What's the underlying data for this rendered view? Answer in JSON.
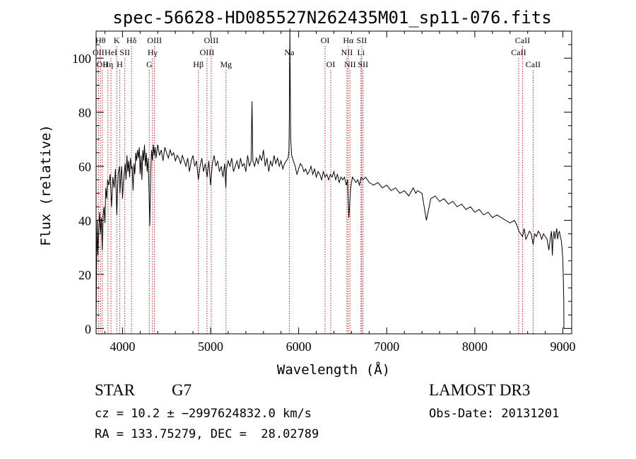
{
  "chart_data": {
    "type": "line",
    "title": "spec-56628-HD085527N262435M01_sp11-076.fits",
    "xlabel": "Wavelength (Å)",
    "ylabel": "Flux (relative)",
    "xlim": [
      3700,
      9100
    ],
    "ylim": [
      -2,
      110
    ],
    "xticks": [
      4000,
      5000,
      6000,
      7000,
      8000,
      9000
    ],
    "yticks": [
      0,
      20,
      40,
      60,
      80,
      100
    ],
    "grid": false,
    "colors": {
      "spectrum": "#000000",
      "lines": "#b22222"
    },
    "series": [
      {
        "x": [
          3700,
          3705,
          3712,
          3720,
          3730,
          3740,
          3750,
          3760,
          3770,
          3780,
          3790,
          3800,
          3810,
          3820,
          3830,
          3845,
          3860,
          3875,
          3890,
          3905,
          3920,
          3935,
          3950,
          3965,
          3970,
          3980,
          3990,
          4000,
          4010,
          4020,
          4030,
          4040,
          4050,
          4060,
          4070,
          4080,
          4090,
          4100,
          4110,
          4120,
          4130,
          4140,
          4150,
          4160,
          4170,
          4180,
          4190,
          4200,
          4210,
          4220,
          4230,
          4240,
          4250,
          4260,
          4270,
          4280,
          4290,
          4300,
          4310,
          4320,
          4330,
          4340,
          4350,
          4360,
          4370,
          4380,
          4400,
          4420,
          4440,
          4460,
          4480,
          4500,
          4520,
          4540,
          4560,
          4580,
          4600,
          4620,
          4640,
          4660,
          4680,
          4700,
          4720,
          4740,
          4760,
          4780,
          4800,
          4820,
          4840,
          4861,
          4880,
          4900,
          4920,
          4940,
          4960,
          4980,
          5000,
          5020,
          5040,
          5060,
          5080,
          5100,
          5120,
          5140,
          5160,
          5172,
          5180,
          5200,
          5220,
          5240,
          5260,
          5280,
          5300,
          5320,
          5340,
          5360,
          5380,
          5400,
          5420,
          5440,
          5460,
          5470,
          5480,
          5500,
          5520,
          5540,
          5560,
          5580,
          5600,
          5620,
          5640,
          5660,
          5680,
          5700,
          5720,
          5740,
          5760,
          5780,
          5800,
          5820,
          5840,
          5860,
          5880,
          5890,
          5895,
          5900,
          5905,
          5910,
          5920,
          5940,
          5960,
          5980,
          6000,
          6020,
          6040,
          6060,
          6080,
          6100,
          6120,
          6140,
          6160,
          6180,
          6200,
          6220,
          6240,
          6260,
          6280,
          6300,
          6320,
          6340,
          6360,
          6380,
          6400,
          6420,
          6440,
          6460,
          6480,
          6500,
          6520,
          6540,
          6555,
          6563,
          6570,
          6590,
          6610,
          6630,
          6650,
          6670,
          6690,
          6710,
          6730,
          6760,
          6800,
          6850,
          6900,
          6950,
          7000,
          7050,
          7100,
          7150,
          7200,
          7250,
          7300,
          7330,
          7350,
          7400,
          7450,
          7500,
          7550,
          7600,
          7650,
          7700,
          7750,
          7800,
          7850,
          7900,
          7950,
          8000,
          8050,
          8100,
          8150,
          8200,
          8250,
          8300,
          8350,
          8400,
          8450,
          8480,
          8500,
          8520,
          8542,
          8560,
          8580,
          8620,
          8640,
          8662,
          8680,
          8700,
          8720,
          8740,
          8760,
          8780,
          8800,
          8820,
          8840,
          8860,
          8870,
          8880,
          8890,
          8900,
          8910,
          8920,
          8930,
          8940,
          8950,
          8960,
          8970,
          8980,
          8990,
          9000,
          9005,
          9010,
          9012
        ],
        "values": [
          0,
          22,
          40,
          27,
          36,
          43,
          35,
          41,
          29,
          42,
          45,
          39,
          52,
          48,
          55,
          53,
          57,
          45,
          56,
          52,
          59,
          42,
          57,
          60,
          50,
          56,
          60,
          48,
          54,
          58,
          61,
          55,
          64,
          58,
          62,
          56,
          63,
          59,
          60,
          51,
          61,
          57,
          65,
          62,
          66,
          63,
          67,
          57,
          64,
          55,
          66,
          62,
          68,
          60,
          65,
          58,
          63,
          52,
          38,
          58,
          66,
          62,
          68,
          64,
          67,
          63,
          68,
          64,
          66,
          62,
          67,
          65,
          63,
          66,
          64,
          65,
          62,
          64,
          63,
          61,
          64,
          62,
          60,
          63,
          58,
          62,
          64,
          60,
          62,
          55,
          60,
          63,
          58,
          61,
          56,
          62,
          53,
          61,
          64,
          60,
          62,
          58,
          60,
          56,
          61,
          52,
          59,
          62,
          60,
          63,
          58,
          60,
          62,
          59,
          63,
          60,
          61,
          58,
          64,
          60,
          62,
          84,
          62,
          60,
          63,
          61,
          64,
          62,
          66,
          60,
          63,
          58,
          62,
          60,
          64,
          61,
          63,
          60,
          62,
          59,
          61,
          62,
          63,
          66,
          80,
          111,
          88,
          70,
          64,
          62,
          60,
          57,
          59,
          61,
          60,
          58,
          59,
          57,
          58,
          60,
          57,
          59,
          56,
          58,
          57,
          55,
          58,
          56,
          57,
          55,
          57,
          56,
          58,
          55,
          57,
          54,
          56,
          55,
          56,
          53,
          55,
          47,
          41,
          52,
          56,
          55,
          54,
          55,
          53,
          56,
          55,
          56,
          54,
          53,
          54,
          52,
          53,
          51,
          52,
          50,
          51,
          49,
          52,
          50,
          51,
          50,
          40,
          48,
          49,
          47,
          48,
          46,
          47,
          45,
          46,
          44,
          45,
          43,
          44,
          42,
          43,
          41,
          42,
          41,
          40,
          39,
          40,
          38,
          36,
          35,
          34,
          37,
          33,
          36,
          35,
          31,
          35,
          34,
          36,
          35,
          33,
          35,
          34,
          33,
          29,
          34,
          36,
          27,
          34,
          36,
          33,
          35,
          37,
          33,
          35,
          36,
          34,
          33,
          30,
          25,
          18,
          10,
          0
        ]
      }
    ],
    "line_markers": [
      {
        "wl": 3727,
        "label": "OII",
        "row": 2
      },
      {
        "wl": 3750,
        "label": "Hθ",
        "row": 1
      },
      {
        "wl": 3771,
        "label": "OII",
        "row": 3
      },
      {
        "wl": 3835,
        "label": "Hη",
        "row": 3
      },
      {
        "wl": 3869,
        "label": "HeI",
        "row": 2
      },
      {
        "wl": 3934,
        "label": "K",
        "row": 1
      },
      {
        "wl": 3968,
        "label": "H",
        "row": 3
      },
      {
        "wl": 4026,
        "label": "SII",
        "row": 2
      },
      {
        "wl": 4102,
        "label": "Hδ",
        "row": 1
      },
      {
        "wl": 4304,
        "label": "G",
        "row": 3
      },
      {
        "wl": 4341,
        "label": "Hγ",
        "row": 2
      },
      {
        "wl": 4363,
        "label": "OIII",
        "row": 1
      },
      {
        "wl": 4861,
        "label": "Hβ",
        "row": 3
      },
      {
        "wl": 4959,
        "label": "OIII",
        "row": 2
      },
      {
        "wl": 5007,
        "label": "OIII",
        "row": 1
      },
      {
        "wl": 5175,
        "label": "Mg",
        "row": 3
      },
      {
        "wl": 5894,
        "label": "Na",
        "row": 2
      },
      {
        "wl": 6300,
        "label": "OI",
        "row": 1
      },
      {
        "wl": 6364,
        "label": "OI",
        "row": 3
      },
      {
        "wl": 6548,
        "label": "NII",
        "row": 2
      },
      {
        "wl": 6563,
        "label": "Hα",
        "row": 1
      },
      {
        "wl": 6583,
        "label": "NII",
        "row": 3
      },
      {
        "wl": 6708,
        "label": "Li",
        "row": 2
      },
      {
        "wl": 6716,
        "label": "SII",
        "row": 1
      },
      {
        "wl": 6731,
        "label": "SII",
        "row": 3
      },
      {
        "wl": 8498,
        "label": "CaII",
        "row": 2
      },
      {
        "wl": 8542,
        "label": "CaII",
        "row": 1
      },
      {
        "wl": 8662,
        "label": "CaII",
        "row": 3
      }
    ]
  },
  "info": {
    "class": "STAR",
    "subclass": "G7",
    "survey": "LAMOST DR3",
    "cz": "cz = 10.2 ± −2997624832.0 km/s",
    "obs_date": "Obs-Date: 20131201",
    "radec": "RA = 133.75279, DEC =  28.02789"
  }
}
